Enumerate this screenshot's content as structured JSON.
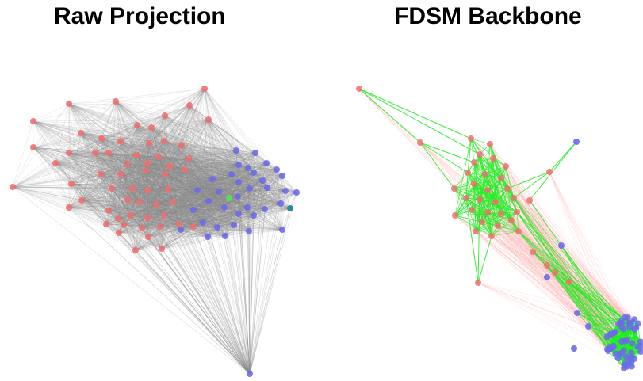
{
  "panels": [
    {
      "title": "Raw Projection"
    },
    {
      "title": "FDSM Backbone"
    }
  ],
  "colors": {
    "red_group": "#f07070",
    "blue_group": "#6b6bea",
    "green_node": "#55dd55",
    "teal_node": "#2a8f9a",
    "raw_edges": "#8a8a8a",
    "backbone_positive_edges": "#22ee22",
    "backbone_negative_edges": "#ffb0b0"
  }
}
